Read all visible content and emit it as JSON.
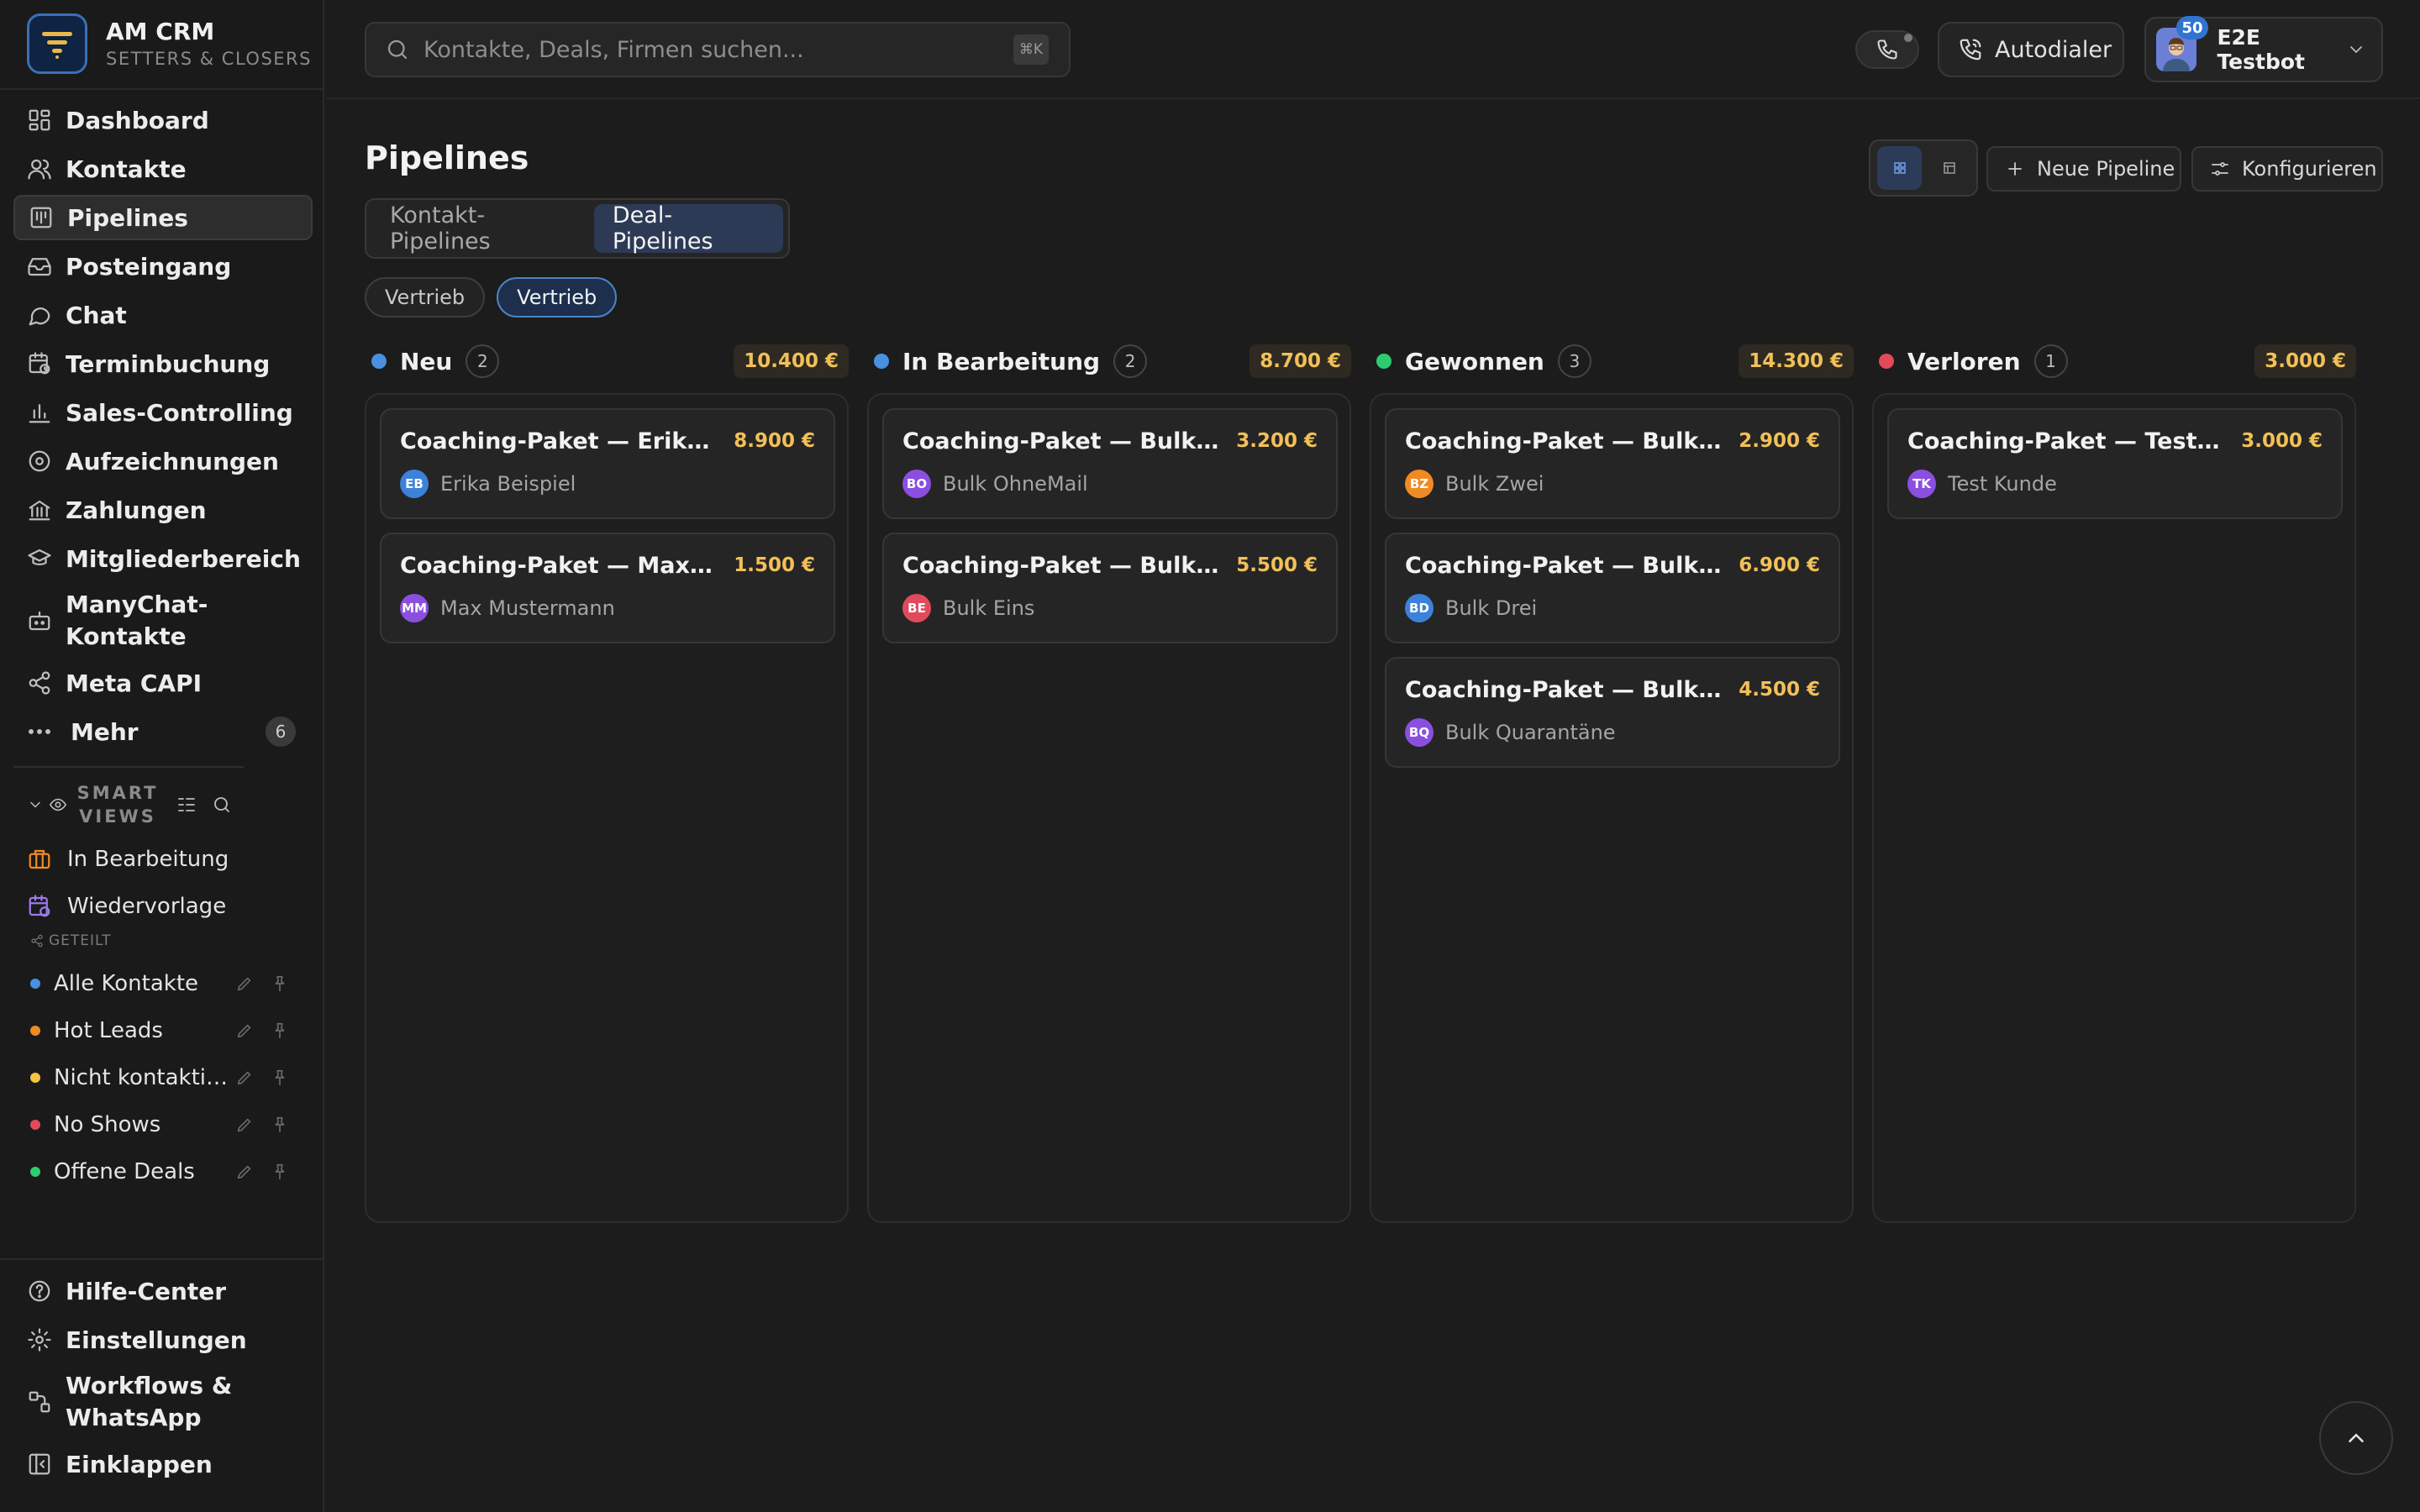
{
  "brand": {
    "title": "AM CRM",
    "subtitle": "SETTERS & CLOSERS"
  },
  "nav": [
    {
      "label": "Dashboard",
      "icon": "dashboard-icon"
    },
    {
      "label": "Kontakte",
      "icon": "contacts-icon"
    },
    {
      "label": "Pipelines",
      "icon": "pipelines-icon",
      "active": true
    },
    {
      "label": "Posteingang",
      "icon": "inbox-icon"
    },
    {
      "label": "Chat",
      "icon": "chat-icon"
    },
    {
      "label": "Terminbuchung",
      "icon": "calendar-clock-icon"
    },
    {
      "label": "Sales-Controlling",
      "icon": "bar-chart-icon"
    },
    {
      "label": "Aufzeichnungen",
      "icon": "record-icon"
    },
    {
      "label": "Zahlungen",
      "icon": "bank-icon"
    },
    {
      "label": "Mitgliederbereich",
      "icon": "graduation-cap-icon"
    },
    {
      "label": "ManyChat-Kontakte",
      "icon": "bot-icon"
    },
    {
      "label": "Meta CAPI",
      "icon": "share-icon"
    },
    {
      "label": "Mehr",
      "icon": "more-icon",
      "badge": "6"
    }
  ],
  "smart_views": {
    "title": "SMART VIEWS",
    "items": [
      {
        "label": "In Bearbeitung",
        "icon": "briefcase-icon"
      },
      {
        "label": "Wiedervorlage",
        "icon": "calendar-clock-icon"
      }
    ],
    "shared_label": "GETEILT",
    "shared": [
      {
        "label": "Alle Kontakte",
        "color": "#4a90e2"
      },
      {
        "label": "Hot Leads",
        "color": "#f08a24"
      },
      {
        "label": "Nicht kontaktiert",
        "color": "#f5c542"
      },
      {
        "label": "No Shows",
        "color": "#e24a5a"
      },
      {
        "label": "Offene Deals",
        "color": "#2ecc71"
      }
    ]
  },
  "bottom_nav": [
    {
      "label": "Hilfe-Center",
      "icon": "help-icon"
    },
    {
      "label": "Einstellungen",
      "icon": "settings-icon"
    },
    {
      "label": "Workflows & WhatsApp",
      "icon": "workflow-icon"
    },
    {
      "label": "Einklappen",
      "icon": "collapse-icon"
    }
  ],
  "topbar": {
    "search_placeholder": "Kontakte, Deals, Firmen suchen...",
    "search_shortcut": "⌘K",
    "autodialer_label": "Autodialer",
    "user_name": "E2E Testbot",
    "user_badge": "50"
  },
  "page": {
    "title": "Pipelines",
    "new_pipeline_label": "Neue Pipeline",
    "configure_label": "Konfigurieren",
    "tabs": [
      {
        "label": "Kontakt-Pipelines",
        "active": false
      },
      {
        "label": "Deal-Pipelines",
        "active": true
      }
    ],
    "chips": [
      {
        "label": "Vertrieb",
        "active": false
      },
      {
        "label": "Vertrieb",
        "active": true
      }
    ]
  },
  "colors": {
    "accent": "#2f74d0",
    "value": "#f2c058"
  },
  "columns": [
    {
      "title": "Neu",
      "count": "2",
      "sum": "10.400 €",
      "color": "#4a90e2",
      "deals": [
        {
          "title": "Coaching-Paket — Erika Beispiel",
          "value": "8.900 €",
          "initials": "EB",
          "contact": "Erika Beispiel",
          "av_color": "#3b82d8"
        },
        {
          "title": "Coaching-Paket — Max Mustermann",
          "value": "1.500 €",
          "initials": "MM",
          "contact": "Max Mustermann",
          "av_color": "#8b4fe0"
        }
      ]
    },
    {
      "title": "In Bearbeitung",
      "count": "2",
      "sum": "8.700 €",
      "color": "#4a90e2",
      "deals": [
        {
          "title": "Coaching-Paket — Bulk OhneMail",
          "value": "3.200 €",
          "initials": "BO",
          "contact": "Bulk OhneMail",
          "av_color": "#8b4fe0"
        },
        {
          "title": "Coaching-Paket — Bulk Eins",
          "value": "5.500 €",
          "initials": "BE",
          "contact": "Bulk Eins",
          "av_color": "#e04a5c"
        }
      ]
    },
    {
      "title": "Gewonnen",
      "count": "3",
      "sum": "14.300 €",
      "color": "#2ecc71",
      "deals": [
        {
          "title": "Coaching-Paket — Bulk Zwei",
          "value": "2.900 €",
          "initials": "BZ",
          "contact": "Bulk Zwei",
          "av_color": "#f08a24"
        },
        {
          "title": "Coaching-Paket — Bulk Drei",
          "value": "6.900 €",
          "initials": "BD",
          "contact": "Bulk Drei",
          "av_color": "#3b82d8"
        },
        {
          "title": "Coaching-Paket — Bulk Quarantäne",
          "value": "4.500 €",
          "initials": "BQ",
          "contact": "Bulk Quarantäne",
          "av_color": "#8b4fe0"
        }
      ]
    },
    {
      "title": "Verloren",
      "count": "1",
      "sum": "3.000 €",
      "color": "#e24a5a",
      "deals": [
        {
          "title": "Coaching-Paket — Test Kunde",
          "value": "3.000 €",
          "initials": "TK",
          "contact": "Test Kunde",
          "av_color": "#8b4fe0"
        }
      ]
    }
  ]
}
